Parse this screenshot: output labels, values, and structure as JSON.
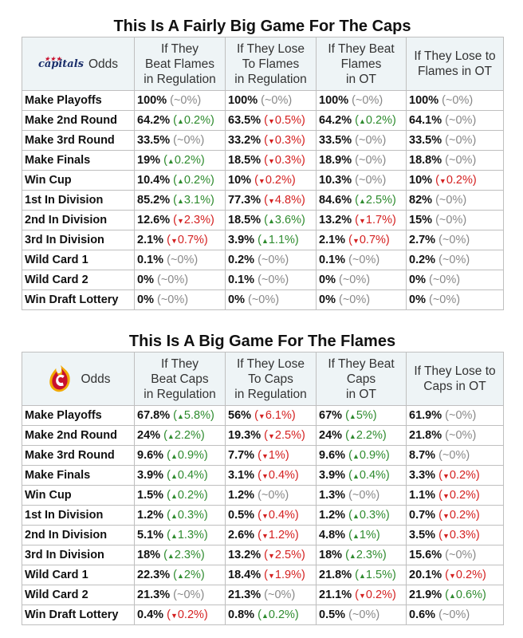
{
  "tables": [
    {
      "title": "This Is A Fairly Big Game For The Caps",
      "logo": {
        "icon": "capitals-logo-icon",
        "text": "capitals"
      },
      "odds_label": "Odds",
      "columns": [
        [
          "If They",
          "Beat Flames",
          "in Regulation"
        ],
        [
          "If They Lose",
          "To Flames",
          "in Regulation"
        ],
        [
          "If They Beat",
          "Flames",
          "in OT"
        ],
        [
          "If They Lose to",
          "Flames in OT"
        ]
      ],
      "rows": [
        {
          "label": "Make Playoffs",
          "cells": [
            {
              "v": "100%",
              "d": "~0%",
              "t": "n"
            },
            {
              "v": "100%",
              "d": "~0%",
              "t": "n"
            },
            {
              "v": "100%",
              "d": "~0%",
              "t": "n"
            },
            {
              "v": "100%",
              "d": "~0%",
              "t": "n"
            }
          ]
        },
        {
          "label": "Make 2nd Round",
          "cells": [
            {
              "v": "64.2%",
              "d": "0.2%",
              "t": "u"
            },
            {
              "v": "63.5%",
              "d": "0.5%",
              "t": "d"
            },
            {
              "v": "64.2%",
              "d": "0.2%",
              "t": "u"
            },
            {
              "v": "64.1%",
              "d": "~0%",
              "t": "n"
            }
          ]
        },
        {
          "label": "Make 3rd Round",
          "cells": [
            {
              "v": "33.5%",
              "d": "~0%",
              "t": "n"
            },
            {
              "v": "33.2%",
              "d": "0.3%",
              "t": "d"
            },
            {
              "v": "33.5%",
              "d": "~0%",
              "t": "n"
            },
            {
              "v": "33.5%",
              "d": "~0%",
              "t": "n"
            }
          ]
        },
        {
          "label": "Make Finals",
          "cells": [
            {
              "v": "19%",
              "d": "0.2%",
              "t": "u"
            },
            {
              "v": "18.5%",
              "d": "0.3%",
              "t": "d"
            },
            {
              "v": "18.9%",
              "d": "~0%",
              "t": "n"
            },
            {
              "v": "18.8%",
              "d": "~0%",
              "t": "n"
            }
          ]
        },
        {
          "label": "Win Cup",
          "cells": [
            {
              "v": "10.4%",
              "d": "0.2%",
              "t": "u"
            },
            {
              "v": "10%",
              "d": "0.2%",
              "t": "d"
            },
            {
              "v": "10.3%",
              "d": "~0%",
              "t": "n"
            },
            {
              "v": "10%",
              "d": "0.2%",
              "t": "d"
            }
          ]
        },
        {
          "label": "1st In Division",
          "cells": [
            {
              "v": "85.2%",
              "d": "3.1%",
              "t": "u"
            },
            {
              "v": "77.3%",
              "d": "4.8%",
              "t": "d"
            },
            {
              "v": "84.6%",
              "d": "2.5%",
              "t": "u"
            },
            {
              "v": "82%",
              "d": "~0%",
              "t": "n"
            }
          ]
        },
        {
          "label": "2nd In Division",
          "cells": [
            {
              "v": "12.6%",
              "d": "2.3%",
              "t": "d"
            },
            {
              "v": "18.5%",
              "d": "3.6%",
              "t": "u"
            },
            {
              "v": "13.2%",
              "d": "1.7%",
              "t": "d"
            },
            {
              "v": "15%",
              "d": "~0%",
              "t": "n"
            }
          ]
        },
        {
          "label": "3rd In Division",
          "cells": [
            {
              "v": "2.1%",
              "d": "0.7%",
              "t": "d"
            },
            {
              "v": "3.9%",
              "d": "1.1%",
              "t": "u"
            },
            {
              "v": "2.1%",
              "d": "0.7%",
              "t": "d"
            },
            {
              "v": "2.7%",
              "d": "~0%",
              "t": "n"
            }
          ]
        },
        {
          "label": "Wild Card 1",
          "cells": [
            {
              "v": "0.1%",
              "d": "~0%",
              "t": "n"
            },
            {
              "v": "0.2%",
              "d": "~0%",
              "t": "n"
            },
            {
              "v": "0.1%",
              "d": "~0%",
              "t": "n"
            },
            {
              "v": "0.2%",
              "d": "~0%",
              "t": "n"
            }
          ]
        },
        {
          "label": "Wild Card 2",
          "cells": [
            {
              "v": "0%",
              "d": "~0%",
              "t": "n"
            },
            {
              "v": "0.1%",
              "d": "~0%",
              "t": "n"
            },
            {
              "v": "0%",
              "d": "~0%",
              "t": "n"
            },
            {
              "v": "0%",
              "d": "~0%",
              "t": "n"
            }
          ]
        },
        {
          "label": "Win Draft Lottery",
          "cells": [
            {
              "v": "0%",
              "d": "~0%",
              "t": "n"
            },
            {
              "v": "0%",
              "d": "~0%",
              "t": "n"
            },
            {
              "v": "0%",
              "d": "~0%",
              "t": "n"
            },
            {
              "v": "0%",
              "d": "~0%",
              "t": "n"
            }
          ]
        }
      ]
    },
    {
      "title": "This Is A Big Game For The Flames",
      "logo": {
        "icon": "flames-logo-icon",
        "text": ""
      },
      "odds_label": "Odds",
      "columns": [
        [
          "If They",
          "Beat Caps",
          "in Regulation"
        ],
        [
          "If They Lose",
          "To Caps",
          "in Regulation"
        ],
        [
          "If They Beat",
          "Caps",
          "in OT"
        ],
        [
          "If They Lose to",
          "Caps in OT"
        ]
      ],
      "rows": [
        {
          "label": "Make Playoffs",
          "cells": [
            {
              "v": "67.8%",
              "d": "5.8%",
              "t": "u"
            },
            {
              "v": "56%",
              "d": "6.1%",
              "t": "d"
            },
            {
              "v": "67%",
              "d": "5%",
              "t": "u"
            },
            {
              "v": "61.9%",
              "d": "~0%",
              "t": "n"
            }
          ]
        },
        {
          "label": "Make 2nd Round",
          "cells": [
            {
              "v": "24%",
              "d": "2.2%",
              "t": "u"
            },
            {
              "v": "19.3%",
              "d": "2.5%",
              "t": "d"
            },
            {
              "v": "24%",
              "d": "2.2%",
              "t": "u"
            },
            {
              "v": "21.8%",
              "d": "~0%",
              "t": "n"
            }
          ]
        },
        {
          "label": "Make 3rd Round",
          "cells": [
            {
              "v": "9.6%",
              "d": "0.9%",
              "t": "u"
            },
            {
              "v": "7.7%",
              "d": "1%",
              "t": "d"
            },
            {
              "v": "9.6%",
              "d": "0.9%",
              "t": "u"
            },
            {
              "v": "8.7%",
              "d": "~0%",
              "t": "n"
            }
          ]
        },
        {
          "label": "Make Finals",
          "cells": [
            {
              "v": "3.9%",
              "d": "0.4%",
              "t": "u"
            },
            {
              "v": "3.1%",
              "d": "0.4%",
              "t": "d"
            },
            {
              "v": "3.9%",
              "d": "0.4%",
              "t": "u"
            },
            {
              "v": "3.3%",
              "d": "0.2%",
              "t": "d"
            }
          ]
        },
        {
          "label": "Win Cup",
          "cells": [
            {
              "v": "1.5%",
              "d": "0.2%",
              "t": "u"
            },
            {
              "v": "1.2%",
              "d": "~0%",
              "t": "n"
            },
            {
              "v": "1.3%",
              "d": "~0%",
              "t": "n"
            },
            {
              "v": "1.1%",
              "d": "0.2%",
              "t": "d"
            }
          ]
        },
        {
          "label": "1st In Division",
          "cells": [
            {
              "v": "1.2%",
              "d": "0.3%",
              "t": "u"
            },
            {
              "v": "0.5%",
              "d": "0.4%",
              "t": "d"
            },
            {
              "v": "1.2%",
              "d": "0.3%",
              "t": "u"
            },
            {
              "v": "0.7%",
              "d": "0.2%",
              "t": "d"
            }
          ]
        },
        {
          "label": "2nd In Division",
          "cells": [
            {
              "v": "5.1%",
              "d": "1.3%",
              "t": "u"
            },
            {
              "v": "2.6%",
              "d": "1.2%",
              "t": "d"
            },
            {
              "v": "4.8%",
              "d": "1%",
              "t": "u"
            },
            {
              "v": "3.5%",
              "d": "0.3%",
              "t": "d"
            }
          ]
        },
        {
          "label": "3rd In Division",
          "cells": [
            {
              "v": "18%",
              "d": "2.3%",
              "t": "u"
            },
            {
              "v": "13.2%",
              "d": "2.5%",
              "t": "d"
            },
            {
              "v": "18%",
              "d": "2.3%",
              "t": "u"
            },
            {
              "v": "15.6%",
              "d": "~0%",
              "t": "n"
            }
          ]
        },
        {
          "label": "Wild Card 1",
          "cells": [
            {
              "v": "22.3%",
              "d": "2%",
              "t": "u"
            },
            {
              "v": "18.4%",
              "d": "1.9%",
              "t": "d"
            },
            {
              "v": "21.8%",
              "d": "1.5%",
              "t": "u"
            },
            {
              "v": "20.1%",
              "d": "0.2%",
              "t": "d"
            }
          ]
        },
        {
          "label": "Wild Card 2",
          "cells": [
            {
              "v": "21.3%",
              "d": "~0%",
              "t": "n"
            },
            {
              "v": "21.3%",
              "d": "~0%",
              "t": "n"
            },
            {
              "v": "21.1%",
              "d": "0.2%",
              "t": "d"
            },
            {
              "v": "21.9%",
              "d": "0.6%",
              "t": "u"
            }
          ]
        },
        {
          "label": "Win Draft Lottery",
          "cells": [
            {
              "v": "0.4%",
              "d": "0.2%",
              "t": "d"
            },
            {
              "v": "0.8%",
              "d": "0.2%",
              "t": "u"
            },
            {
              "v": "0.5%",
              "d": "~0%",
              "t": "n"
            },
            {
              "v": "0.6%",
              "d": "~0%",
              "t": "n"
            }
          ]
        }
      ]
    }
  ],
  "colors": {
    "up": "#2e8b2e",
    "down": "#d42020",
    "neutral": "#888888",
    "header_bg": "#eef4f6",
    "border": "#bfbfbf"
  },
  "chart_data": [
    {
      "type": "table",
      "title": "This Is A Fairly Big Game For The Caps",
      "columns": [
        "If They Beat Flames in Regulation",
        "If They Lose To Flames in Regulation",
        "If They Beat Flames in OT",
        "If They Lose to Flames in OT"
      ],
      "rows": [
        "Make Playoffs",
        "Make 2nd Round",
        "Make 3rd Round",
        "Make Finals",
        "Win Cup",
        "1st In Division",
        "2nd In Division",
        "3rd In Division",
        "Wild Card 1",
        "Wild Card 2",
        "Win Draft Lottery"
      ],
      "values": [
        [
          100,
          100,
          100,
          100
        ],
        [
          64.2,
          63.5,
          64.2,
          64.1
        ],
        [
          33.5,
          33.2,
          33.5,
          33.5
        ],
        [
          19,
          18.5,
          18.9,
          18.8
        ],
        [
          10.4,
          10,
          10.3,
          10
        ],
        [
          85.2,
          77.3,
          84.6,
          82
        ],
        [
          12.6,
          18.5,
          13.2,
          15
        ],
        [
          2.1,
          3.9,
          2.1,
          2.7
        ],
        [
          0.1,
          0.2,
          0.1,
          0.2
        ],
        [
          0,
          0.1,
          0,
          0
        ],
        [
          0,
          0,
          0,
          0
        ]
      ]
    },
    {
      "type": "table",
      "title": "This Is A Big Game For The Flames",
      "columns": [
        "If They Beat Caps in Regulation",
        "If They Lose To Caps in Regulation",
        "If They Beat Caps in OT",
        "If They Lose to Caps in OT"
      ],
      "rows": [
        "Make Playoffs",
        "Make 2nd Round",
        "Make 3rd Round",
        "Make Finals",
        "Win Cup",
        "1st In Division",
        "2nd In Division",
        "3rd In Division",
        "Wild Card 1",
        "Wild Card 2",
        "Win Draft Lottery"
      ],
      "values": [
        [
          67.8,
          56,
          67,
          61.9
        ],
        [
          24,
          19.3,
          24,
          21.8
        ],
        [
          9.6,
          7.7,
          9.6,
          8.7
        ],
        [
          3.9,
          3.1,
          3.9,
          3.3
        ],
        [
          1.5,
          1.2,
          1.3,
          1.1
        ],
        [
          1.2,
          0.5,
          1.2,
          0.7
        ],
        [
          5.1,
          2.6,
          4.8,
          3.5
        ],
        [
          18,
          13.2,
          18,
          15.6
        ],
        [
          22.3,
          18.4,
          21.8,
          20.1
        ],
        [
          21.3,
          21.3,
          21.1,
          21.9
        ],
        [
          0.4,
          0.8,
          0.5,
          0.6
        ]
      ]
    }
  ]
}
